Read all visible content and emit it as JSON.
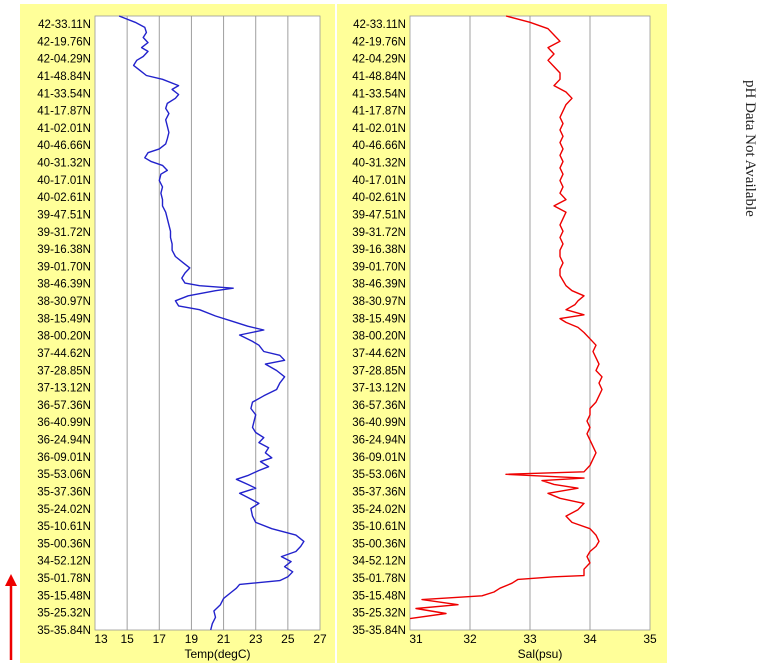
{
  "side_note": "pH Data Not Available",
  "colors": {
    "panel_bg": "#ffff99",
    "plot_bg": "#ffffff",
    "grid": "#a0a0a0",
    "temp_line": "#2222cc",
    "sal_line": "#ee0000",
    "arrow": "#ee0000"
  },
  "lat_labels": [
    "42-33.11N",
    "42-19.76N",
    "42-04.29N",
    "41-48.84N",
    "41-33.54N",
    "41-17.87N",
    "41-02.01N",
    "40-46.66N",
    "40-31.32N",
    "40-17.01N",
    "40-02.61N",
    "39-47.51N",
    "39-31.72N",
    "39-16.38N",
    "39-01.70N",
    "38-46.39N",
    "38-30.97N",
    "38-15.49N",
    "38-00.20N",
    "37-44.62N",
    "37-28.85N",
    "37-13.12N",
    "36-57.36N",
    "36-40.99N",
    "36-24.94N",
    "36-09.01N",
    "35-53.06N",
    "35-37.36N",
    "35-24.02N",
    "35-10.61N",
    "35-00.36N",
    "34-52.12N",
    "35-01.78N",
    "35-15.48N",
    "35-25.32N",
    "35-35.84N"
  ],
  "chart_data": [
    {
      "type": "line",
      "xlabel": "Temp(degC)",
      "xlim": [
        13,
        27
      ],
      "xticks": [
        13,
        15,
        17,
        19,
        21,
        23,
        25,
        27
      ],
      "grid": true,
      "series": [
        {
          "values": [
            [
              20.2,
              0
            ],
            [
              20.3,
              0.5
            ],
            [
              20.5,
              1
            ],
            [
              20.4,
              1.5
            ],
            [
              20.8,
              2
            ],
            [
              21.0,
              2.5
            ],
            [
              21.5,
              3
            ],
            [
              21.8,
              3.3
            ],
            [
              22.0,
              3.6
            ],
            [
              24.5,
              3.9
            ],
            [
              25.0,
              4.2
            ],
            [
              25.3,
              4.6
            ],
            [
              24.8,
              5
            ],
            [
              25.2,
              5.4
            ],
            [
              24.6,
              5.8
            ],
            [
              25.5,
              6.2
            ],
            [
              25.8,
              6.6
            ],
            [
              26.0,
              7
            ],
            [
              25.5,
              7.5
            ],
            [
              24.0,
              8
            ],
            [
              23.0,
              8.5
            ],
            [
              22.8,
              9
            ],
            [
              22.7,
              9.6
            ],
            [
              23.2,
              10
            ],
            [
              22.6,
              10.4
            ],
            [
              22.0,
              10.8
            ],
            [
              23.0,
              11.2
            ],
            [
              22.5,
              11.5
            ],
            [
              21.8,
              11.9
            ],
            [
              22.5,
              12.2
            ],
            [
              23.2,
              12.6
            ],
            [
              23.8,
              12.9
            ],
            [
              23.3,
              13.3
            ],
            [
              24.0,
              13.6
            ],
            [
              23.6,
              14
            ],
            [
              23.8,
              14.4
            ],
            [
              23.2,
              14.8
            ],
            [
              23.5,
              15.2
            ],
            [
              23.0,
              15.6
            ],
            [
              22.8,
              16
            ],
            [
              22.9,
              16.5
            ],
            [
              23.0,
              17
            ],
            [
              22.7,
              17.5
            ],
            [
              22.8,
              18
            ],
            [
              23.5,
              18.5
            ],
            [
              24.3,
              19
            ],
            [
              24.5,
              19.5
            ],
            [
              24.8,
              20
            ],
            [
              24.3,
              20.5
            ],
            [
              23.6,
              21
            ],
            [
              24.8,
              21.3
            ],
            [
              24.5,
              21.7
            ],
            [
              23.5,
              22
            ],
            [
              23.2,
              22.5
            ],
            [
              22.8,
              22.8
            ],
            [
              22.0,
              23.3
            ],
            [
              23.5,
              23.7
            ],
            [
              22.5,
              24
            ],
            [
              21.5,
              24.4
            ],
            [
              20.5,
              24.8
            ],
            [
              19.5,
              25.3
            ],
            [
              18.2,
              25.6
            ],
            [
              18.0,
              26
            ],
            [
              18.8,
              26.4
            ],
            [
              20.5,
              26.8
            ],
            [
              21.6,
              27
            ],
            [
              19.5,
              27.2
            ],
            [
              18.6,
              27.4
            ],
            [
              18.4,
              27.8
            ],
            [
              18.6,
              28.2
            ],
            [
              18.9,
              28.6
            ],
            [
              18.5,
              29
            ],
            [
              18.0,
              29.5
            ],
            [
              17.8,
              30
            ],
            [
              17.8,
              30.5
            ],
            [
              17.7,
              31
            ],
            [
              17.7,
              31.5
            ],
            [
              17.6,
              32
            ],
            [
              17.5,
              32.5
            ],
            [
              17.4,
              33
            ],
            [
              17.2,
              33.5
            ],
            [
              17.2,
              34
            ],
            [
              17.1,
              34.5
            ],
            [
              17.2,
              35
            ],
            [
              17.0,
              35.5
            ],
            [
              17.1,
              36
            ],
            [
              17.5,
              36.3
            ],
            [
              17.2,
              36.7
            ],
            [
              16.5,
              37
            ],
            [
              16.1,
              37.3
            ],
            [
              16.3,
              37.7
            ],
            [
              17.0,
              38
            ],
            [
              17.4,
              38.4
            ],
            [
              17.5,
              38.8
            ],
            [
              17.6,
              39.3
            ],
            [
              17.5,
              39.8
            ],
            [
              17.4,
              40.3
            ],
            [
              17.6,
              40.8
            ],
            [
              17.4,
              41.2
            ],
            [
              17.5,
              41.6
            ],
            [
              18.0,
              42
            ],
            [
              18.2,
              42.3
            ],
            [
              17.8,
              42.7
            ],
            [
              18.2,
              43
            ],
            [
              17.2,
              43.5
            ],
            [
              16.2,
              43.8
            ],
            [
              15.8,
              44.2
            ],
            [
              15.4,
              44.6
            ],
            [
              15.6,
              45
            ],
            [
              16.0,
              45.3
            ],
            [
              16.3,
              45.7
            ],
            [
              15.9,
              46
            ],
            [
              16.3,
              46.4
            ],
            [
              16.0,
              46.8
            ],
            [
              16.2,
              47.2
            ],
            [
              16.1,
              47.6
            ],
            [
              15.5,
              48
            ],
            [
              14.5,
              48.5
            ]
          ]
        }
      ]
    },
    {
      "type": "line",
      "xlabel": "Sal(psu)",
      "xlim": [
        31,
        35
      ],
      "xticks": [
        31,
        32,
        33,
        34,
        35
      ],
      "grid": true,
      "series": [
        {
          "values": [
            [
              31.0,
              0.9
            ],
            [
              31.6,
              1.3
            ],
            [
              31.1,
              1.7
            ],
            [
              31.8,
              2
            ],
            [
              31.2,
              2.4
            ],
            [
              32.2,
              2.7
            ],
            [
              32.4,
              3
            ],
            [
              32.5,
              3.3
            ],
            [
              32.7,
              3.7
            ],
            [
              32.8,
              4
            ],
            [
              33.4,
              4.2
            ],
            [
              33.9,
              4.3
            ],
            [
              33.9,
              4.8
            ],
            [
              34.0,
              5.3
            ],
            [
              33.95,
              5.8
            ],
            [
              34.0,
              6.2
            ],
            [
              34.1,
              6.6
            ],
            [
              34.15,
              7
            ],
            [
              34.1,
              7.5
            ],
            [
              34.0,
              8
            ],
            [
              33.7,
              8.5
            ],
            [
              33.6,
              9
            ],
            [
              33.8,
              9.5
            ],
            [
              33.9,
              10
            ],
            [
              33.5,
              10.4
            ],
            [
              33.3,
              10.8
            ],
            [
              33.8,
              11.2
            ],
            [
              33.4,
              11.5
            ],
            [
              33.2,
              11.8
            ],
            [
              33.9,
              12
            ],
            [
              32.6,
              12.3
            ],
            [
              33.9,
              12.5
            ],
            [
              34.0,
              13
            ],
            [
              34.05,
              13.5
            ],
            [
              34.1,
              14
            ],
            [
              34.05,
              14.5
            ],
            [
              34.0,
              15
            ],
            [
              33.95,
              15.5
            ],
            [
              34.0,
              16
            ],
            [
              33.95,
              16.5
            ],
            [
              34.0,
              17
            ],
            [
              34.0,
              17.5
            ],
            [
              34.1,
              18
            ],
            [
              34.15,
              18.5
            ],
            [
              34.2,
              19
            ],
            [
              34.15,
              19.5
            ],
            [
              34.2,
              20
            ],
            [
              34.1,
              20.5
            ],
            [
              34.15,
              21
            ],
            [
              34.1,
              21.5
            ],
            [
              34.05,
              22
            ],
            [
              34.1,
              22.5
            ],
            [
              34.0,
              23
            ],
            [
              33.9,
              23.5
            ],
            [
              33.8,
              23.9
            ],
            [
              33.6,
              24.3
            ],
            [
              33.5,
              24.6
            ],
            [
              33.9,
              24.9
            ],
            [
              33.6,
              25.3
            ],
            [
              33.75,
              25.7
            ],
            [
              33.8,
              26
            ],
            [
              33.9,
              26.4
            ],
            [
              33.7,
              26.8
            ],
            [
              33.6,
              27.2
            ],
            [
              33.55,
              27.6
            ],
            [
              33.5,
              28
            ],
            [
              33.5,
              28.5
            ],
            [
              33.55,
              29
            ],
            [
              33.5,
              29.5
            ],
            [
              33.5,
              30
            ],
            [
              33.55,
              30.5
            ],
            [
              33.5,
              31
            ],
            [
              33.55,
              31.5
            ],
            [
              33.5,
              32
            ],
            [
              33.55,
              32.5
            ],
            [
              33.6,
              33
            ],
            [
              33.4,
              33.5
            ],
            [
              33.6,
              34
            ],
            [
              33.5,
              34.5
            ],
            [
              33.55,
              35
            ],
            [
              33.5,
              35.5
            ],
            [
              33.55,
              36
            ],
            [
              33.5,
              36.5
            ],
            [
              33.55,
              37
            ],
            [
              33.5,
              37.5
            ],
            [
              33.55,
              38
            ],
            [
              33.5,
              38.5
            ],
            [
              33.55,
              39
            ],
            [
              33.5,
              39.5
            ],
            [
              33.55,
              40
            ],
            [
              33.5,
              40.5
            ],
            [
              33.55,
              41
            ],
            [
              33.6,
              41.5
            ],
            [
              33.7,
              42
            ],
            [
              33.6,
              42.5
            ],
            [
              33.4,
              43
            ],
            [
              33.5,
              43.5
            ],
            [
              33.5,
              44
            ],
            [
              33.4,
              44.5
            ],
            [
              33.3,
              45
            ],
            [
              33.4,
              45.5
            ],
            [
              33.3,
              46
            ],
            [
              33.5,
              46.5
            ],
            [
              33.4,
              47
            ],
            [
              33.3,
              47.5
            ],
            [
              33.0,
              48
            ],
            [
              32.6,
              48.5
            ]
          ]
        }
      ]
    }
  ]
}
